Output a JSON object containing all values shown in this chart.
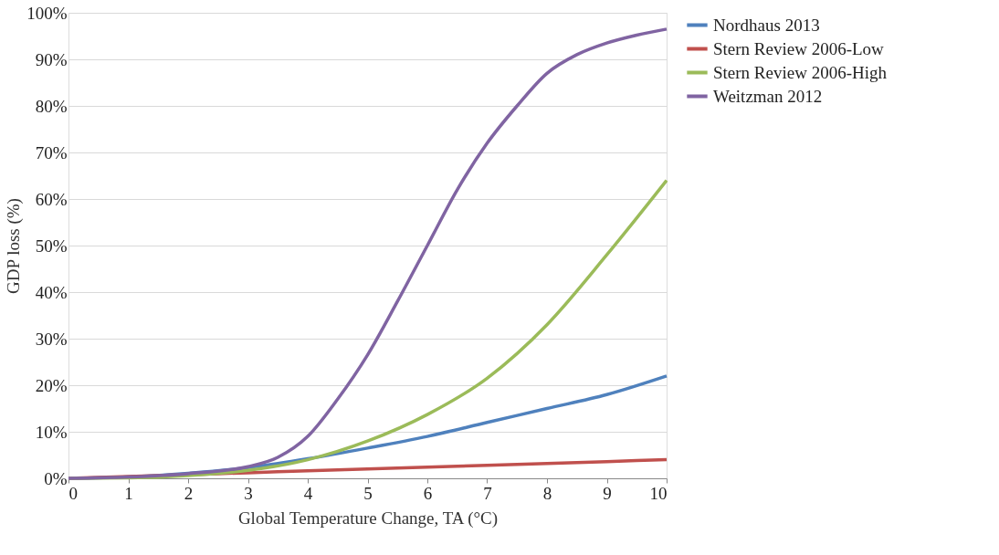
{
  "chart_data": {
    "type": "line",
    "xlabel": "Global Temperature Change, TA (°C)",
    "ylabel": "GDP loss (%)",
    "xlim": [
      0,
      10
    ],
    "xticks": [
      0,
      1,
      2,
      3,
      4,
      5,
      6,
      7,
      8,
      9,
      10
    ],
    "ylim": [
      0,
      100
    ],
    "yticks": [
      {
        "value": 0,
        "label": "0%"
      },
      {
        "value": 10,
        "label": "10%"
      },
      {
        "value": 20,
        "label": "20%"
      },
      {
        "value": 30,
        "label": "30%"
      },
      {
        "value": 40,
        "label": "40%"
      },
      {
        "value": 50,
        "label": "50%"
      },
      {
        "value": 60,
        "label": "60%"
      },
      {
        "value": 70,
        "label": "70%"
      },
      {
        "value": 80,
        "label": "80%"
      },
      {
        "value": 90,
        "label": "90%"
      },
      {
        "value": 100,
        "label": "100%"
      }
    ],
    "grid": "y",
    "legend": "right",
    "line_style": "solid",
    "marker": "none",
    "series": [
      {
        "name": "Nordhaus 2013",
        "color": "#4f81bd",
        "x": [
          0,
          1,
          2,
          3,
          4,
          5,
          6,
          7,
          8,
          9,
          10
        ],
        "values": [
          0,
          0.3,
          1.1,
          2.3,
          4.2,
          6.5,
          9,
          12,
          15,
          18,
          22
        ]
      },
      {
        "name": "Stern Review 2006-Low",
        "color": "#c0504d",
        "x": [
          0,
          1,
          2,
          3,
          4,
          5,
          6,
          7,
          8,
          9,
          10
        ],
        "values": [
          0,
          0.4,
          0.8,
          1.2,
          1.6,
          2,
          2.4,
          2.8,
          3.2,
          3.6,
          4
        ]
      },
      {
        "name": "Stern Review 2006-High",
        "color": "#9bbb59",
        "x": [
          0,
          1,
          2,
          3,
          4,
          5,
          6,
          7,
          8,
          9,
          10
        ],
        "values": [
          0,
          0.1,
          0.6,
          1.7,
          4,
          8,
          13.7,
          21.5,
          33,
          48,
          64
        ]
      },
      {
        "name": "Weitzman 2012",
        "color": "#8064a2",
        "x": [
          0,
          1,
          2,
          3,
          3.5,
          4,
          4.5,
          5,
          5.5,
          6,
          6.5,
          7,
          7.5,
          8,
          8.5,
          9,
          9.5,
          10
        ],
        "values": [
          0,
          0.3,
          1,
          2.5,
          4.5,
          9,
          17,
          26.5,
          38,
          50,
          62,
          72,
          80,
          87,
          91,
          93.5,
          95.2,
          96.5
        ]
      }
    ]
  }
}
